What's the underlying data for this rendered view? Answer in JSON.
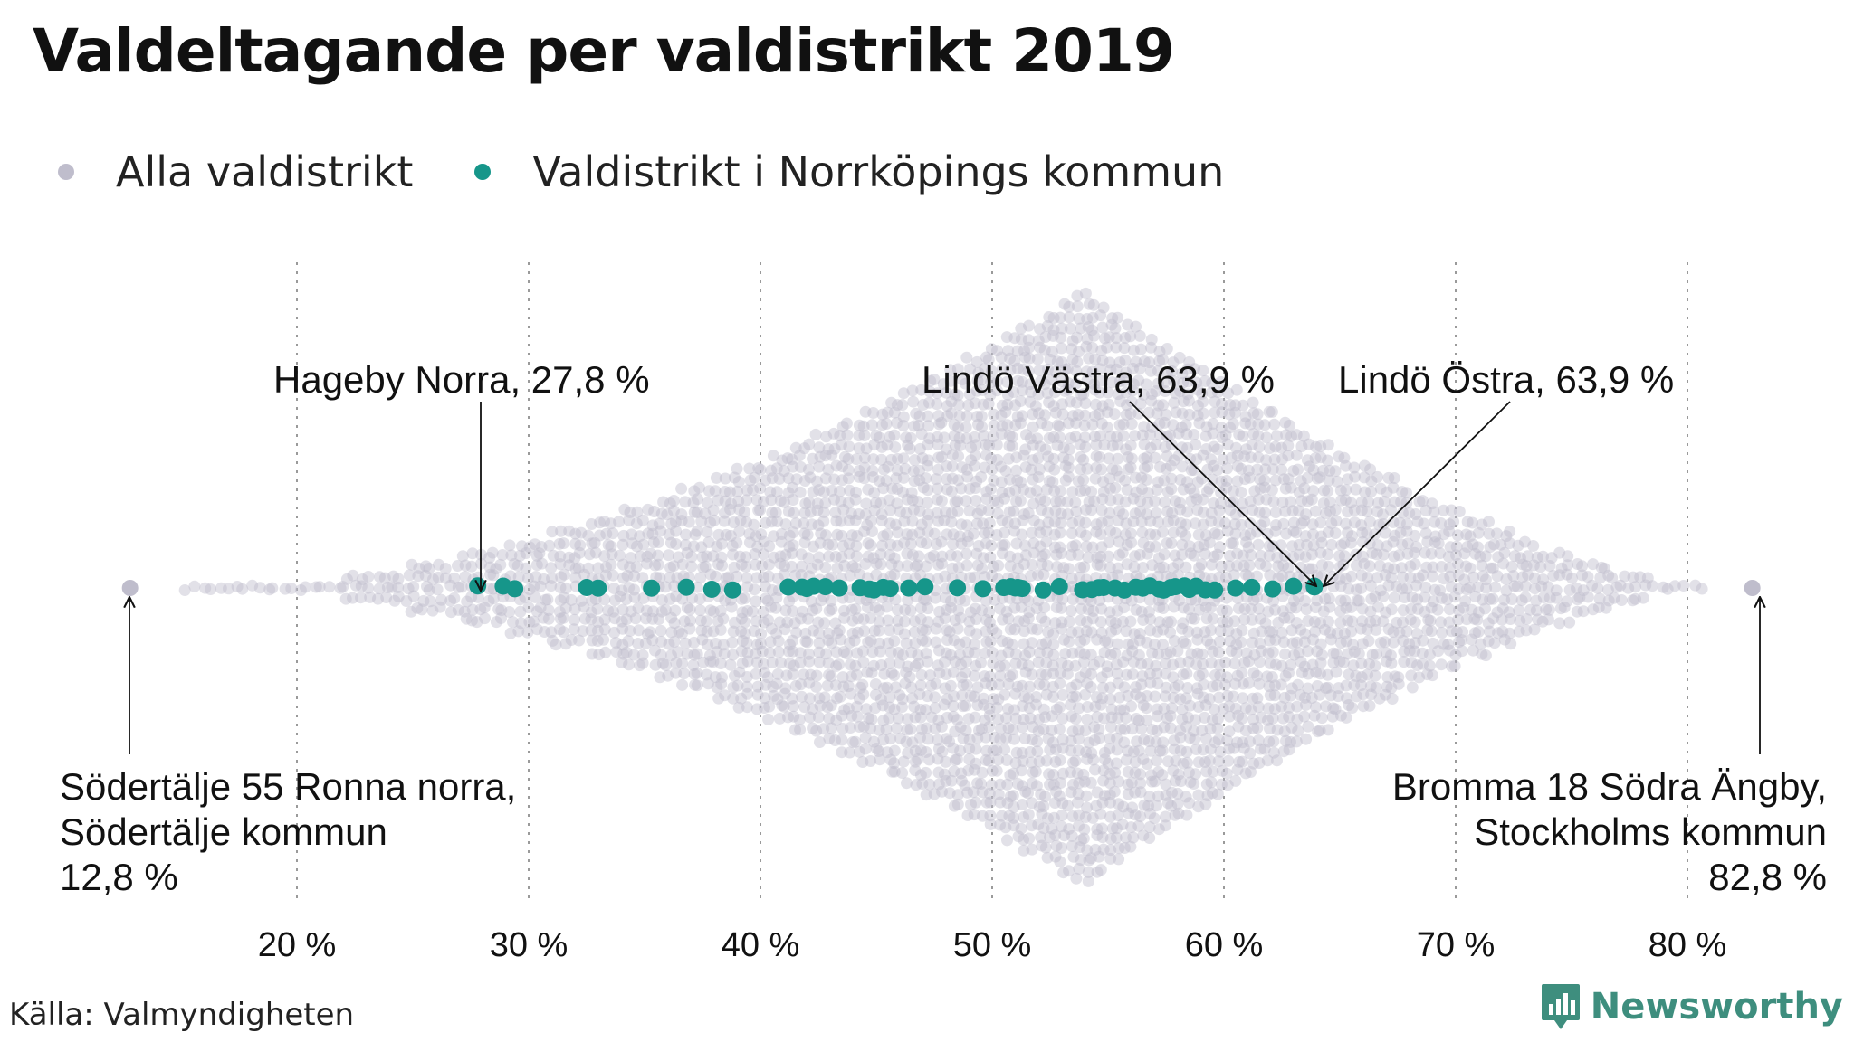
{
  "title": "Valdeltagande per valdistrikt 2019",
  "legend": [
    {
      "label": "Alla valdistrikt",
      "color": "#bfbdcc"
    },
    {
      "label": "Valdistrikt i Norrköpings kommun",
      "color": "#16968a"
    }
  ],
  "source": "Källa: Valmyndigheten",
  "brand": "Newsworthy",
  "chart_data": {
    "type": "scatter",
    "xlim": [
      10,
      85
    ],
    "xticks": [
      20,
      30,
      40,
      50,
      60,
      70,
      80
    ],
    "xtick_labels": [
      "20 %",
      "30 %",
      "40 %",
      "50 %",
      "60 %",
      "70 %",
      "80 %"
    ],
    "grid": "vertical dotted",
    "legend_position": "top-left",
    "series": [
      {
        "name": "Alla valdistrikt",
        "color": "#bfbdcc",
        "distribution": {
          "min": 12.8,
          "max": 82.8,
          "mode": 54
        }
      },
      {
        "name": "Valdistrikt i Norrköpings kommun",
        "color": "#16968a",
        "values": [
          27.8,
          28.9,
          29.4,
          32.5,
          33.0,
          35.3,
          36.8,
          37.9,
          38.8,
          41.2,
          41.8,
          42.0,
          42.3,
          42.8,
          43.4,
          44.3,
          44.7,
          44.9,
          45.3,
          45.6,
          46.4,
          47.1,
          48.5,
          49.6,
          50.5,
          50.8,
          51.0,
          51.1,
          51.2,
          51.3,
          52.2,
          52.9,
          53.9,
          54.3,
          54.6,
          54.8,
          55.3,
          55.7,
          56.2,
          56.5,
          56.8,
          57.2,
          57.4,
          57.7,
          57.9,
          58.3,
          58.5,
          58.8,
          59.2,
          59.6,
          60.5,
          61.2,
          62.1,
          63.0,
          63.9,
          63.9
        ]
      }
    ],
    "annotations": [
      {
        "text": "Hageby Norra, 27,8 %",
        "x": 27.8
      },
      {
        "text": "Lindö Västra, 63,9 %",
        "x": 63.9
      },
      {
        "text": "Lindö Östra, 63,9 %",
        "x": 63.9
      },
      {
        "lines": [
          "Södertälje 55 Ronna norra,",
          "Södertälje kommun",
          "12,8 %"
        ],
        "x": 12.8
      },
      {
        "lines": [
          "Bromma 18 Södra Ängby,",
          "Stockholms kommun",
          "82,8 %"
        ],
        "x": 82.8
      }
    ]
  }
}
